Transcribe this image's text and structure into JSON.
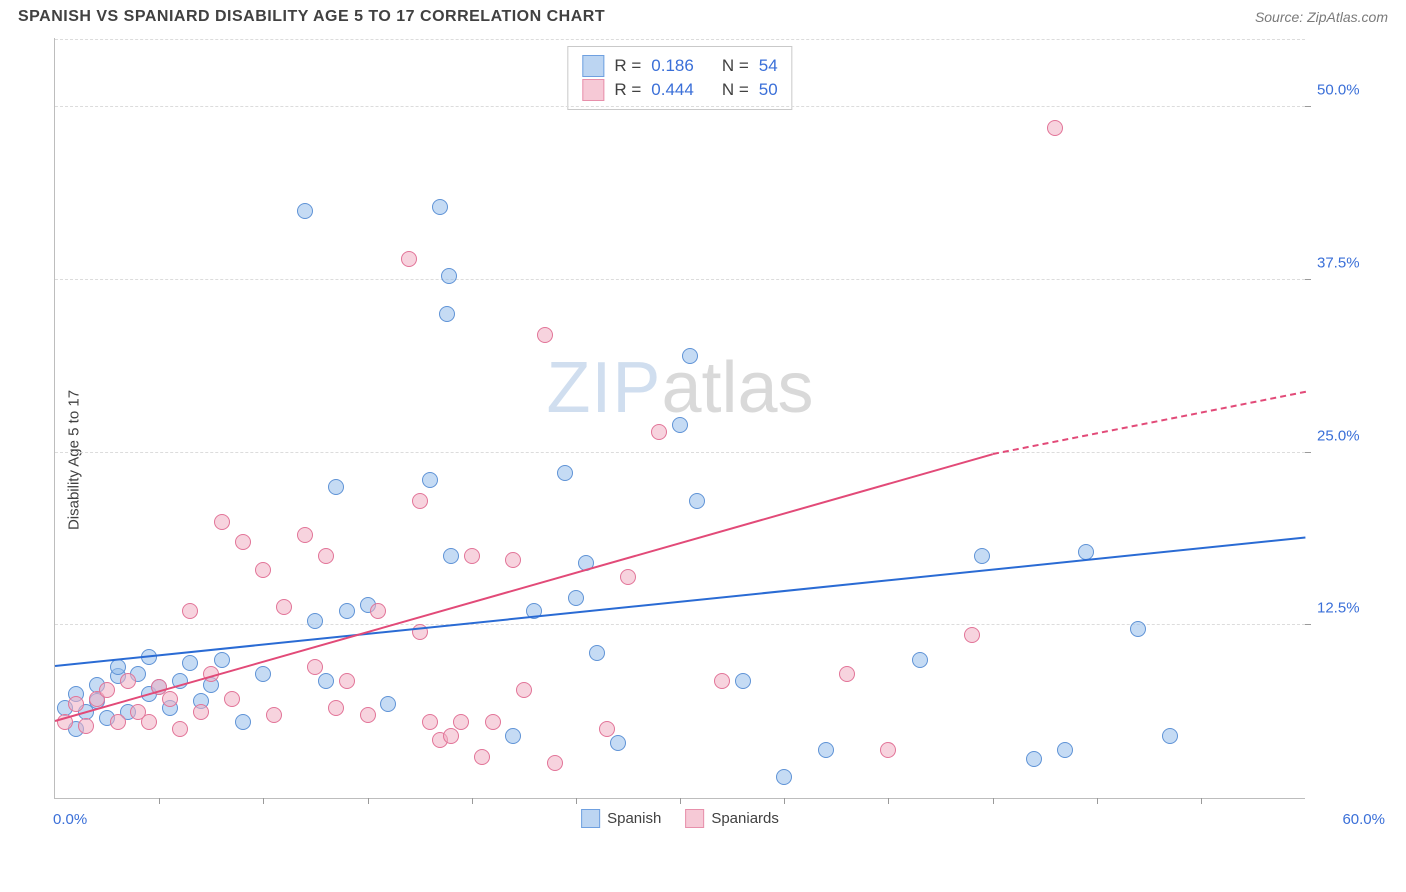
{
  "header": {
    "title": "SPANISH VS SPANIARD DISABILITY AGE 5 TO 17 CORRELATION CHART",
    "source": "Source: ZipAtlas.com"
  },
  "chart": {
    "type": "scatter",
    "ylabel": "Disability Age 5 to 17",
    "xlim": [
      0,
      60
    ],
    "ylim": [
      0,
      55
    ],
    "x_axis": {
      "min_label": "0.0%",
      "max_label": "60.0%",
      "label_color": "#3a6fd8",
      "tick_positions": [
        5,
        10,
        15,
        20,
        25,
        30,
        35,
        40,
        45,
        50,
        55
      ]
    },
    "y_axis": {
      "ticks": [
        {
          "v": 12.5,
          "label": "12.5%"
        },
        {
          "v": 25.0,
          "label": "25.0%"
        },
        {
          "v": 37.5,
          "label": "37.5%"
        },
        {
          "v": 50.0,
          "label": "50.0%"
        }
      ],
      "label_color": "#3a6fd8"
    },
    "grid_color": "#dcdcdc",
    "background_color": "#ffffff",
    "watermark": {
      "zip": "ZIP",
      "atlas": "atlas"
    },
    "legend_top": {
      "rows": [
        {
          "swatch_fill": "#bcd5f2",
          "swatch_border": "#6fa0e0",
          "r_label": "R =",
          "r_value": "0.186",
          "n_label": "N =",
          "n_value": "54",
          "val_color": "#3a6fd8"
        },
        {
          "swatch_fill": "#f6c9d6",
          "swatch_border": "#e790ab",
          "r_label": "R =",
          "r_value": "0.444",
          "n_label": "N =",
          "n_value": "50",
          "val_color": "#3a6fd8"
        }
      ]
    },
    "legend_bottom": {
      "items": [
        {
          "swatch_fill": "#bcd5f2",
          "swatch_border": "#6fa0e0",
          "label": "Spanish"
        },
        {
          "swatch_fill": "#f6c9d6",
          "swatch_border": "#e790ab",
          "label": "Spaniards"
        }
      ]
    },
    "series": [
      {
        "name": "Spanish",
        "marker_fill": "rgba(150,190,235,0.55)",
        "marker_border": "#5f93d6",
        "marker_size": 16,
        "trend_color": "#2a6bd4",
        "trend": {
          "x1": 0,
          "y1": 9.5,
          "x2": 60,
          "y2": 18.8,
          "dash_from_x": 60
        },
        "points": [
          [
            0.5,
            6.5
          ],
          [
            1,
            5
          ],
          [
            1,
            7.5
          ],
          [
            1.5,
            6.2
          ],
          [
            2,
            8.2
          ],
          [
            2,
            7
          ],
          [
            2.5,
            5.8
          ],
          [
            3,
            8.8
          ],
          [
            3,
            9.5
          ],
          [
            3.5,
            6.2
          ],
          [
            4,
            9
          ],
          [
            4.5,
            7.5
          ],
          [
            4.5,
            10.2
          ],
          [
            5,
            8
          ],
          [
            5.5,
            6.5
          ],
          [
            6,
            8.5
          ],
          [
            6.5,
            9.8
          ],
          [
            7,
            7
          ],
          [
            7.5,
            8.2
          ],
          [
            8,
            10
          ],
          [
            9,
            5.5
          ],
          [
            10,
            9
          ],
          [
            12,
            42.5
          ],
          [
            12.5,
            12.8
          ],
          [
            13,
            8.5
          ],
          [
            13.5,
            22.5
          ],
          [
            14,
            13.5
          ],
          [
            15,
            14
          ],
          [
            16,
            6.8
          ],
          [
            18,
            23
          ],
          [
            18.5,
            42.8
          ],
          [
            18.8,
            35
          ],
          [
            18.9,
            37.8
          ],
          [
            19,
            17.5
          ],
          [
            22,
            4.5
          ],
          [
            23,
            13.5
          ],
          [
            24.5,
            23.5
          ],
          [
            25,
            14.5
          ],
          [
            25.5,
            17
          ],
          [
            26,
            10.5
          ],
          [
            27,
            4
          ],
          [
            30,
            27
          ],
          [
            30.5,
            32
          ],
          [
            30.8,
            21.5
          ],
          [
            33,
            8.5
          ],
          [
            35,
            1.5
          ],
          [
            37,
            3.5
          ],
          [
            41.5,
            10
          ],
          [
            44.5,
            17.5
          ],
          [
            47,
            2.8
          ],
          [
            48.5,
            3.5
          ],
          [
            49.5,
            17.8
          ],
          [
            52,
            12.2
          ],
          [
            53.5,
            4.5
          ]
        ]
      },
      {
        "name": "Spaniards",
        "marker_fill": "rgba(240,175,195,0.55)",
        "marker_border": "#e27498",
        "marker_size": 16,
        "trend_color": "#e24a78",
        "trend": {
          "x1": 0,
          "y1": 5.5,
          "x2": 45,
          "y2": 24.8,
          "dash_from_x": 45,
          "dash_x2": 60,
          "dash_y2": 29.3
        },
        "points": [
          [
            0.5,
            5.5
          ],
          [
            1,
            6.8
          ],
          [
            1.5,
            5.2
          ],
          [
            2,
            7.2
          ],
          [
            2.5,
            7.8
          ],
          [
            3,
            5.5
          ],
          [
            3.5,
            8.5
          ],
          [
            4,
            6.2
          ],
          [
            4.5,
            5.5
          ],
          [
            5,
            8
          ],
          [
            5.5,
            7.2
          ],
          [
            6,
            5
          ],
          [
            6.5,
            13.5
          ],
          [
            7,
            6.2
          ],
          [
            7.5,
            9
          ],
          [
            8,
            20
          ],
          [
            8.5,
            7.2
          ],
          [
            9,
            18.5
          ],
          [
            10,
            16.5
          ],
          [
            10.5,
            6
          ],
          [
            11,
            13.8
          ],
          [
            12,
            19
          ],
          [
            12.5,
            9.5
          ],
          [
            13,
            17.5
          ],
          [
            13.5,
            6.5
          ],
          [
            14,
            8.5
          ],
          [
            15,
            6
          ],
          [
            15.5,
            13.5
          ],
          [
            17,
            39
          ],
          [
            17.5,
            21.5
          ],
          [
            18,
            5.5
          ],
          [
            18.5,
            4.2
          ],
          [
            19,
            4.5
          ],
          [
            19.5,
            5.5
          ],
          [
            20,
            17.5
          ],
          [
            20.5,
            3
          ],
          [
            21,
            5.5
          ],
          [
            22,
            17.2
          ],
          [
            22.5,
            7.8
          ],
          [
            23.5,
            33.5
          ],
          [
            24,
            2.5
          ],
          [
            26.5,
            5
          ],
          [
            27.5,
            16
          ],
          [
            29,
            26.5
          ],
          [
            32,
            8.5
          ],
          [
            38,
            9
          ],
          [
            40,
            3.5
          ],
          [
            44,
            11.8
          ],
          [
            48,
            48.5
          ],
          [
            17.5,
            12
          ]
        ]
      }
    ]
  }
}
